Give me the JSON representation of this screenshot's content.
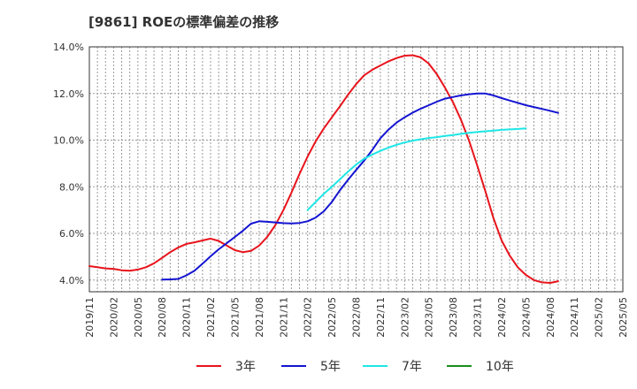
{
  "chart_data": {
    "type": "line",
    "title": "[9861]  ROEの標準偏差の推移",
    "xlabel": "",
    "ylabel": "",
    "ylim": [
      3.5,
      14.0
    ],
    "y_ticks": [
      4.0,
      6.0,
      8.0,
      10.0,
      12.0,
      14.0
    ],
    "y_tick_labels": [
      "4.0%",
      "6.0%",
      "8.0%",
      "10.0%",
      "12.0%",
      "14.0%"
    ],
    "x_tick_labels": [
      "2019/11",
      "2020/02",
      "2020/05",
      "2020/08",
      "2020/11",
      "2021/02",
      "2021/05",
      "2021/08",
      "2021/11",
      "2022/02",
      "2022/05",
      "2022/08",
      "2022/11",
      "2023/02",
      "2023/05",
      "2023/08",
      "2023/11",
      "2024/02",
      "2024/05",
      "2024/08",
      "2024/11",
      "2025/02",
      "2025/05"
    ],
    "grid": true,
    "legend_position": "bottom",
    "series": [
      {
        "name": "3年",
        "color": "#e8141c",
        "start_index": 0,
        "values": [
          4.6,
          4.55,
          4.5,
          4.48,
          4.42,
          4.4,
          4.45,
          4.55,
          4.72,
          4.95,
          5.2,
          5.4,
          5.55,
          5.62,
          5.7,
          5.78,
          5.68,
          5.48,
          5.28,
          5.2,
          5.25,
          5.48,
          5.85,
          6.35,
          7.0,
          7.75,
          8.55,
          9.3,
          9.95,
          10.5,
          10.98,
          11.45,
          11.95,
          12.4,
          12.78,
          13.02,
          13.2,
          13.38,
          13.52,
          13.62,
          13.64,
          13.55,
          13.28,
          12.82,
          12.25,
          11.62,
          10.85,
          9.95,
          8.9,
          7.8,
          6.65,
          5.7,
          5.05,
          4.55,
          4.22,
          4.0,
          3.9,
          3.88,
          3.95
        ]
      },
      {
        "name": "5年",
        "color": "#1414d2",
        "start_index": 9,
        "values": [
          4.02,
          4.03,
          4.05,
          4.2,
          4.4,
          4.7,
          5.02,
          5.32,
          5.58,
          5.85,
          6.12,
          6.42,
          6.52,
          6.5,
          6.47,
          6.44,
          6.43,
          6.45,
          6.52,
          6.68,
          6.95,
          7.35,
          7.85,
          8.3,
          8.72,
          9.12,
          9.58,
          10.08,
          10.45,
          10.75,
          10.98,
          11.18,
          11.35,
          11.5,
          11.65,
          11.78,
          11.85,
          11.92,
          11.97,
          12.0,
          12.0,
          11.92,
          11.8,
          11.7,
          11.6,
          11.5,
          11.42,
          11.34,
          11.26,
          11.17
        ]
      },
      {
        "name": "7年",
        "color": "#1ee6e6",
        "start_index": 27,
        "values": [
          7.0,
          7.35,
          7.7,
          8.0,
          8.32,
          8.65,
          8.95,
          9.2,
          9.38,
          9.54,
          9.68,
          9.8,
          9.9,
          9.98,
          10.04,
          10.09,
          10.13,
          10.18,
          10.22,
          10.27,
          10.31,
          10.35,
          10.38,
          10.41,
          10.44,
          10.46,
          10.48,
          10.5
        ]
      },
      {
        "name": "10年",
        "color": "#1a8c1a",
        "start_index": 0,
        "values": []
      }
    ]
  }
}
